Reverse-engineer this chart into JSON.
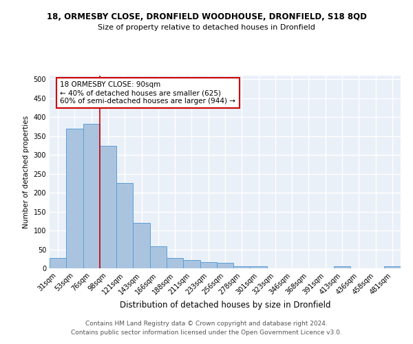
{
  "title": "18, ORMESBY CLOSE, DRONFIELD WOODHOUSE, DRONFIELD, S18 8QD",
  "subtitle": "Size of property relative to detached houses in Dronfield",
  "xlabel": "Distribution of detached houses by size in Dronfield",
  "ylabel": "Number of detached properties",
  "categories": [
    "31sqm",
    "53sqm",
    "76sqm",
    "98sqm",
    "121sqm",
    "143sqm",
    "166sqm",
    "188sqm",
    "211sqm",
    "233sqm",
    "256sqm",
    "278sqm",
    "301sqm",
    "323sqm",
    "346sqm",
    "368sqm",
    "391sqm",
    "413sqm",
    "436sqm",
    "458sqm",
    "481sqm"
  ],
  "values": [
    28,
    370,
    383,
    325,
    225,
    121,
    58,
    28,
    22,
    17,
    15,
    5,
    5,
    0,
    0,
    0,
    0,
    5,
    0,
    0,
    5
  ],
  "bar_color": "#aac4e0",
  "bar_edge_color": "#5a9fd4",
  "vline_x": 2.5,
  "vline_color": "#cc0000",
  "annotation_text": "18 ORMESBY CLOSE: 90sqm\n← 40% of detached houses are smaller (625)\n60% of semi-detached houses are larger (944) →",
  "annotation_box_color": "white",
  "annotation_box_edge_color": "#cc0000",
  "ylim": [
    0,
    510
  ],
  "yticks": [
    0,
    50,
    100,
    150,
    200,
    250,
    300,
    350,
    400,
    450,
    500
  ],
  "footer_text": "Contains HM Land Registry data © Crown copyright and database right 2024.\nContains public sector information licensed under the Open Government Licence v3.0.",
  "plot_bg_color": "#eaf0f8",
  "title_fontsize": 8.5,
  "subtitle_fontsize": 8.0,
  "xlabel_fontsize": 8.5,
  "ylabel_fontsize": 7.5,
  "tick_fontsize": 7.0,
  "footer_fontsize": 6.5,
  "annotation_fontsize": 7.5,
  "grid_color": "white",
  "grid_linewidth": 1.0
}
